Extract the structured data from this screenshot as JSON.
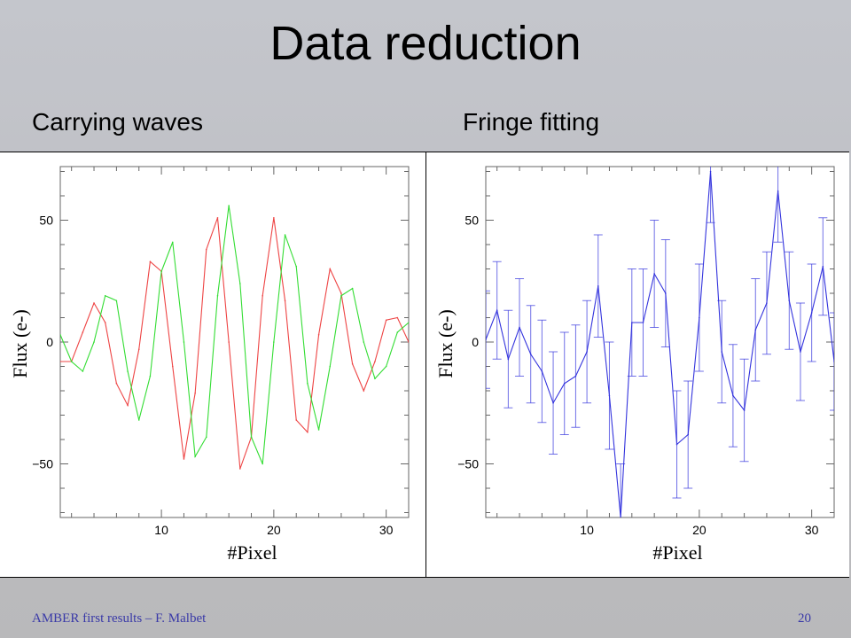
{
  "slide": {
    "title": "Data reduction",
    "left_heading": "Carrying waves",
    "right_heading": "Fringe fitting",
    "footer_text": "AMBER first results – F. Malbet",
    "page_number": "20"
  },
  "chart_data": [
    {
      "type": "line",
      "xlabel": "#Pixel",
      "ylabel": "Flux (e-)",
      "xlim": [
        1,
        32
      ],
      "ylim": [
        -72,
        72
      ],
      "xticks": [
        10,
        20,
        30
      ],
      "yticks": [
        -50,
        0,
        50
      ],
      "grid": false,
      "x": [
        1,
        2,
        3,
        4,
        5,
        6,
        7,
        8,
        9,
        10,
        11,
        12,
        13,
        14,
        15,
        16,
        17,
        18,
        19,
        20,
        21,
        22,
        23,
        24,
        25,
        26,
        27,
        28,
        29,
        30,
        31,
        32
      ],
      "series": [
        {
          "color": "#ee4444",
          "values": [
            -8,
            -8,
            4,
            16,
            8,
            -17,
            -26,
            -3,
            33,
            29,
            -10,
            -48,
            -21,
            38,
            51,
            0,
            -52,
            -39,
            19,
            51,
            17,
            -32,
            -37,
            3,
            30,
            20,
            -9,
            -20,
            -8,
            9,
            10,
            0
          ]
        },
        {
          "color": "#33dd33",
          "values": [
            3,
            -8,
            -12,
            0,
            19,
            17,
            -12,
            -32,
            -14,
            29,
            41,
            0,
            -47,
            -39,
            19,
            56,
            24,
            -39,
            -50,
            0,
            44,
            31,
            -17,
            -36,
            -10,
            19,
            22,
            0,
            -15,
            -10,
            4,
            8
          ]
        }
      ]
    },
    {
      "type": "line",
      "xlabel": "#Pixel",
      "ylabel": "Flux (e-)",
      "xlim": [
        1,
        32
      ],
      "ylim": [
        -72,
        72
      ],
      "xticks": [
        10,
        20,
        30
      ],
      "yticks": [
        -50,
        0,
        50
      ],
      "grid": false,
      "x": [
        1,
        2,
        3,
        4,
        5,
        6,
        7,
        8,
        9,
        10,
        11,
        12,
        13,
        14,
        15,
        16,
        17,
        18,
        19,
        20,
        21,
        22,
        23,
        24,
        25,
        26,
        27,
        28,
        29,
        30,
        31,
        32
      ],
      "series": [
        {
          "color": "#3333dd",
          "values": [
            1,
            13,
            -7,
            6,
            -5,
            -12,
            -25,
            -17,
            -14,
            -4,
            23,
            -22,
            -72,
            8,
            8,
            28,
            20,
            -42,
            -38,
            10,
            70,
            -4,
            -22,
            -28,
            5,
            16,
            62,
            17,
            -4,
            12,
            31,
            -8
          ],
          "errors": [
            20,
            20,
            20,
            20,
            20,
            21,
            21,
            21,
            21,
            21,
            21,
            22,
            22,
            22,
            22,
            22,
            22,
            22,
            22,
            22,
            21,
            21,
            21,
            21,
            21,
            21,
            21,
            20,
            20,
            20,
            20,
            20
          ]
        }
      ]
    }
  ]
}
